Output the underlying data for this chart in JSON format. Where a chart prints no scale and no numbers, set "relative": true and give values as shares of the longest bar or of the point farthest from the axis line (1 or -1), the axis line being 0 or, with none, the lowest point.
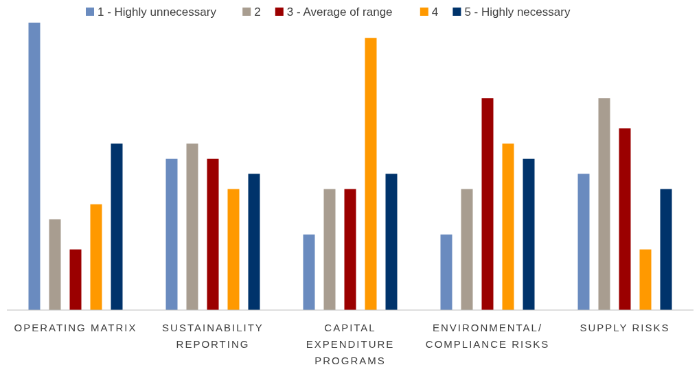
{
  "chart_data": {
    "type": "bar",
    "relative": true,
    "legend": "top",
    "categories": [
      "OPERATING MATRIX",
      "SUSTAINABILITY REPORTING",
      "CAPITAL EXPENDITURE PROGRAMS",
      "ENVIRONMENTAL/ COMPLIANCE RISKS",
      "SUPPLY RISKS"
    ],
    "series": [
      {
        "name": "1 - Highly unnecessary",
        "color": "#6a8bbf",
        "values": [
          1,
          0.526,
          0.263,
          0.263,
          0.474
        ]
      },
      {
        "name": "2",
        "color": "#a89d90",
        "values": [
          0.316,
          0.579,
          0.421,
          0.421,
          0.737
        ]
      },
      {
        "name": "3 - Average of range",
        "color": "#9b0000",
        "values": [
          0.211,
          0.526,
          0.421,
          0.737,
          0.632
        ]
      },
      {
        "name": "4",
        "color": "#ff9900",
        "values": [
          0.368,
          0.421,
          0.947,
          0.579,
          0.211
        ]
      },
      {
        "name": "5 - Highly necessary",
        "color": "#00336b",
        "values": [
          0.579,
          0.474,
          0.474,
          0.526,
          0.421
        ]
      }
    ]
  }
}
